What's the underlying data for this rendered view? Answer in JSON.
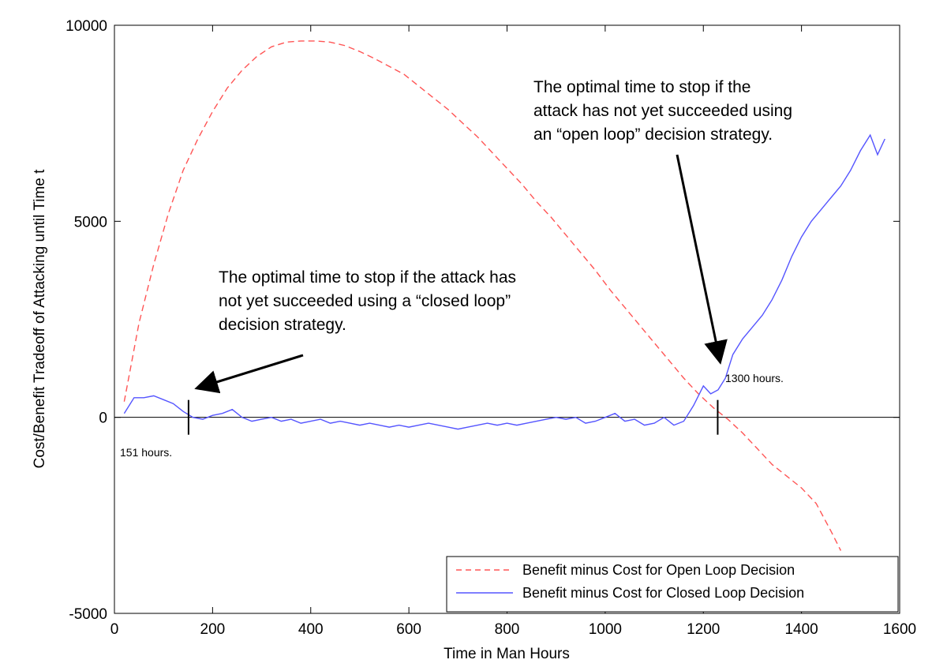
{
  "chart_data": {
    "type": "line",
    "xlabel": "Time in Man Hours",
    "ylabel": "Cost/Benefit Tradeoff of Attacking until Time t",
    "xlim": [
      0,
      1600
    ],
    "ylim": [
      -5000,
      10000
    ],
    "xticks": [
      0,
      200,
      400,
      600,
      800,
      1000,
      1200,
      1400,
      1600
    ],
    "yticks": [
      -5000,
      0,
      5000,
      10000
    ],
    "grid": false,
    "legend_position": "bottom-right",
    "series": [
      {
        "name": "Benefit minus Cost for Open Loop Decision",
        "color": "#ff5555",
        "style": "dashed",
        "x": [
          20,
          50,
          80,
          110,
          140,
          170,
          200,
          230,
          260,
          290,
          320,
          350,
          380,
          410,
          440,
          470,
          500,
          530,
          560,
          590,
          620,
          650,
          680,
          710,
          740,
          770,
          800,
          830,
          860,
          890,
          920,
          950,
          980,
          1010,
          1040,
          1070,
          1100,
          1130,
          1160,
          1190,
          1220,
          1250,
          1280,
          1310,
          1340,
          1370,
          1400,
          1430,
          1460,
          1480
        ],
        "values": [
          400,
          2400,
          3900,
          5200,
          6300,
          7100,
          7800,
          8400,
          8850,
          9200,
          9450,
          9570,
          9600,
          9600,
          9570,
          9480,
          9330,
          9150,
          8950,
          8750,
          8450,
          8150,
          7850,
          7500,
          7150,
          6750,
          6350,
          5950,
          5500,
          5100,
          4650,
          4200,
          3750,
          3250,
          2800,
          2350,
          1900,
          1450,
          1000,
          600,
          250,
          -50,
          -400,
          -800,
          -1200,
          -1500,
          -1800,
          -2200,
          -2900,
          -3400
        ]
      },
      {
        "name": "Benefit minus Cost for Closed Loop Decision",
        "color": "#5555ff",
        "style": "solid",
        "x": [
          20,
          40,
          60,
          80,
          100,
          120,
          140,
          160,
          180,
          200,
          220,
          240,
          260,
          280,
          300,
          320,
          340,
          360,
          380,
          400,
          420,
          440,
          460,
          480,
          500,
          520,
          540,
          560,
          580,
          600,
          620,
          640,
          660,
          680,
          700,
          720,
          740,
          760,
          780,
          800,
          820,
          840,
          860,
          880,
          900,
          920,
          940,
          960,
          980,
          1000,
          1020,
          1040,
          1060,
          1080,
          1100,
          1120,
          1140,
          1160,
          1180,
          1200,
          1215,
          1230,
          1245,
          1260,
          1280,
          1300,
          1320,
          1340,
          1360,
          1380,
          1400,
          1420,
          1440,
          1460,
          1480,
          1500,
          1520,
          1540,
          1555,
          1570
        ],
        "values": [
          100,
          500,
          500,
          550,
          450,
          350,
          150,
          0,
          -50,
          50,
          100,
          200,
          0,
          -100,
          -50,
          0,
          -100,
          -50,
          -150,
          -100,
          -50,
          -150,
          -100,
          -150,
          -200,
          -150,
          -200,
          -250,
          -200,
          -250,
          -200,
          -150,
          -200,
          -250,
          -300,
          -250,
          -200,
          -150,
          -200,
          -150,
          -200,
          -150,
          -100,
          -50,
          0,
          -50,
          0,
          -150,
          -100,
          0,
          100,
          -100,
          -50,
          -200,
          -150,
          0,
          -200,
          -100,
          300,
          800,
          600,
          700,
          1000,
          1600,
          2000,
          2300,
          2600,
          3000,
          3500,
          4100,
          4600,
          5000,
          5300,
          5600,
          5900,
          6300,
          6800,
          7200,
          6700,
          7100
        ]
      }
    ],
    "annotations": {
      "closed_loop_text": [
        "The optimal time to stop if the attack has",
        "not yet succeeded using a “closed loop”",
        "decision strategy."
      ],
      "open_loop_text": [
        "The optimal time to stop if the",
        "attack has not yet succeeded using",
        "an “open loop” decision strategy."
      ],
      "closed_loop_marker_label": "151 hours.",
      "open_loop_marker_label": "1300 hours.",
      "closed_loop_marker_x": 151,
      "open_loop_marker_x": 1300
    }
  }
}
